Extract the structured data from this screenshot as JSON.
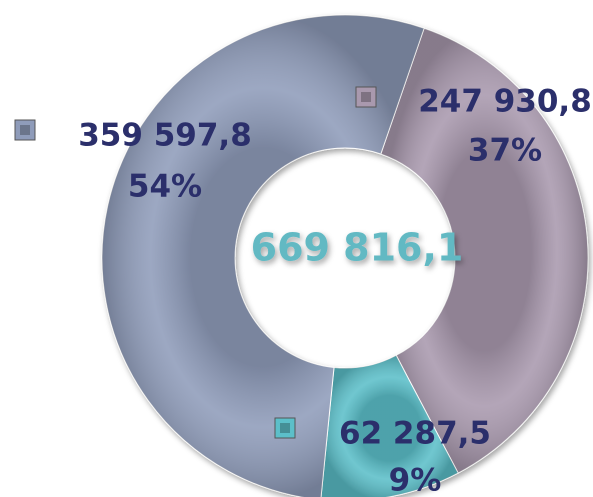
{
  "chart_data": {
    "type": "donut",
    "values": [
      247930.8,
      62287.5,
      359597.8
    ],
    "value_labels": [
      "247 930,8",
      "62 287,5",
      "359 597,8"
    ],
    "percentages": [
      37,
      9,
      54
    ],
    "percentage_labels": [
      "37%",
      "9%",
      "54%"
    ],
    "colors": [
      "#a999ae",
      "#5cbfc9",
      "#8f9cba"
    ],
    "total": 669816.1,
    "total_label": "669 816,1"
  }
}
